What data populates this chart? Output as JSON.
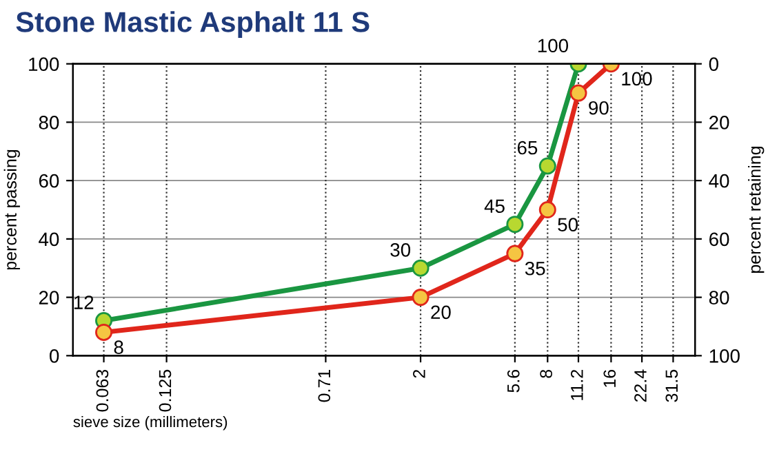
{
  "chart_data": {
    "type": "line",
    "title": "Stone Mastic Asphalt 11 S",
    "xlabel": "sieve size (millimeters)",
    "ylabel": "percent passing",
    "y2label": "percent retaining",
    "log": "x",
    "xlim": [
      0.045,
      40
    ],
    "xticks": [
      {
        "value": 0.063,
        "label": "0.063"
      },
      {
        "value": 0.125,
        "label": "0.125"
      },
      {
        "value": 0.71,
        "label": "0.71"
      },
      2,
      {
        "value": 5.6,
        "label": "5.6"
      },
      8,
      {
        "value": 11.2,
        "label": "11.2"
      },
      16,
      {
        "value": 22.4,
        "label": "22.4"
      },
      {
        "value": 31.5,
        "label": "31.5"
      }
    ],
    "ylim": [
      0,
      100
    ],
    "yticks": [
      0,
      20,
      40,
      60,
      80,
      100
    ],
    "y2lim": [
      100,
      0
    ],
    "y2ticks": [
      0,
      20,
      40,
      60,
      80,
      100
    ],
    "grid": true,
    "marker": "circle",
    "line_style": "solid",
    "data_labels": true,
    "series": [
      {
        "color": "#1a9641",
        "x": [
          0.063,
          2,
          5.6,
          8,
          11.2
        ],
        "values": [
          12,
          30,
          45,
          65,
          100
        ]
      },
      {
        "color": "#e0261b",
        "x": [
          0.063,
          2,
          5.6,
          8,
          11.2,
          16
        ],
        "values": [
          8,
          20,
          35,
          50,
          90,
          100
        ]
      }
    ]
  }
}
